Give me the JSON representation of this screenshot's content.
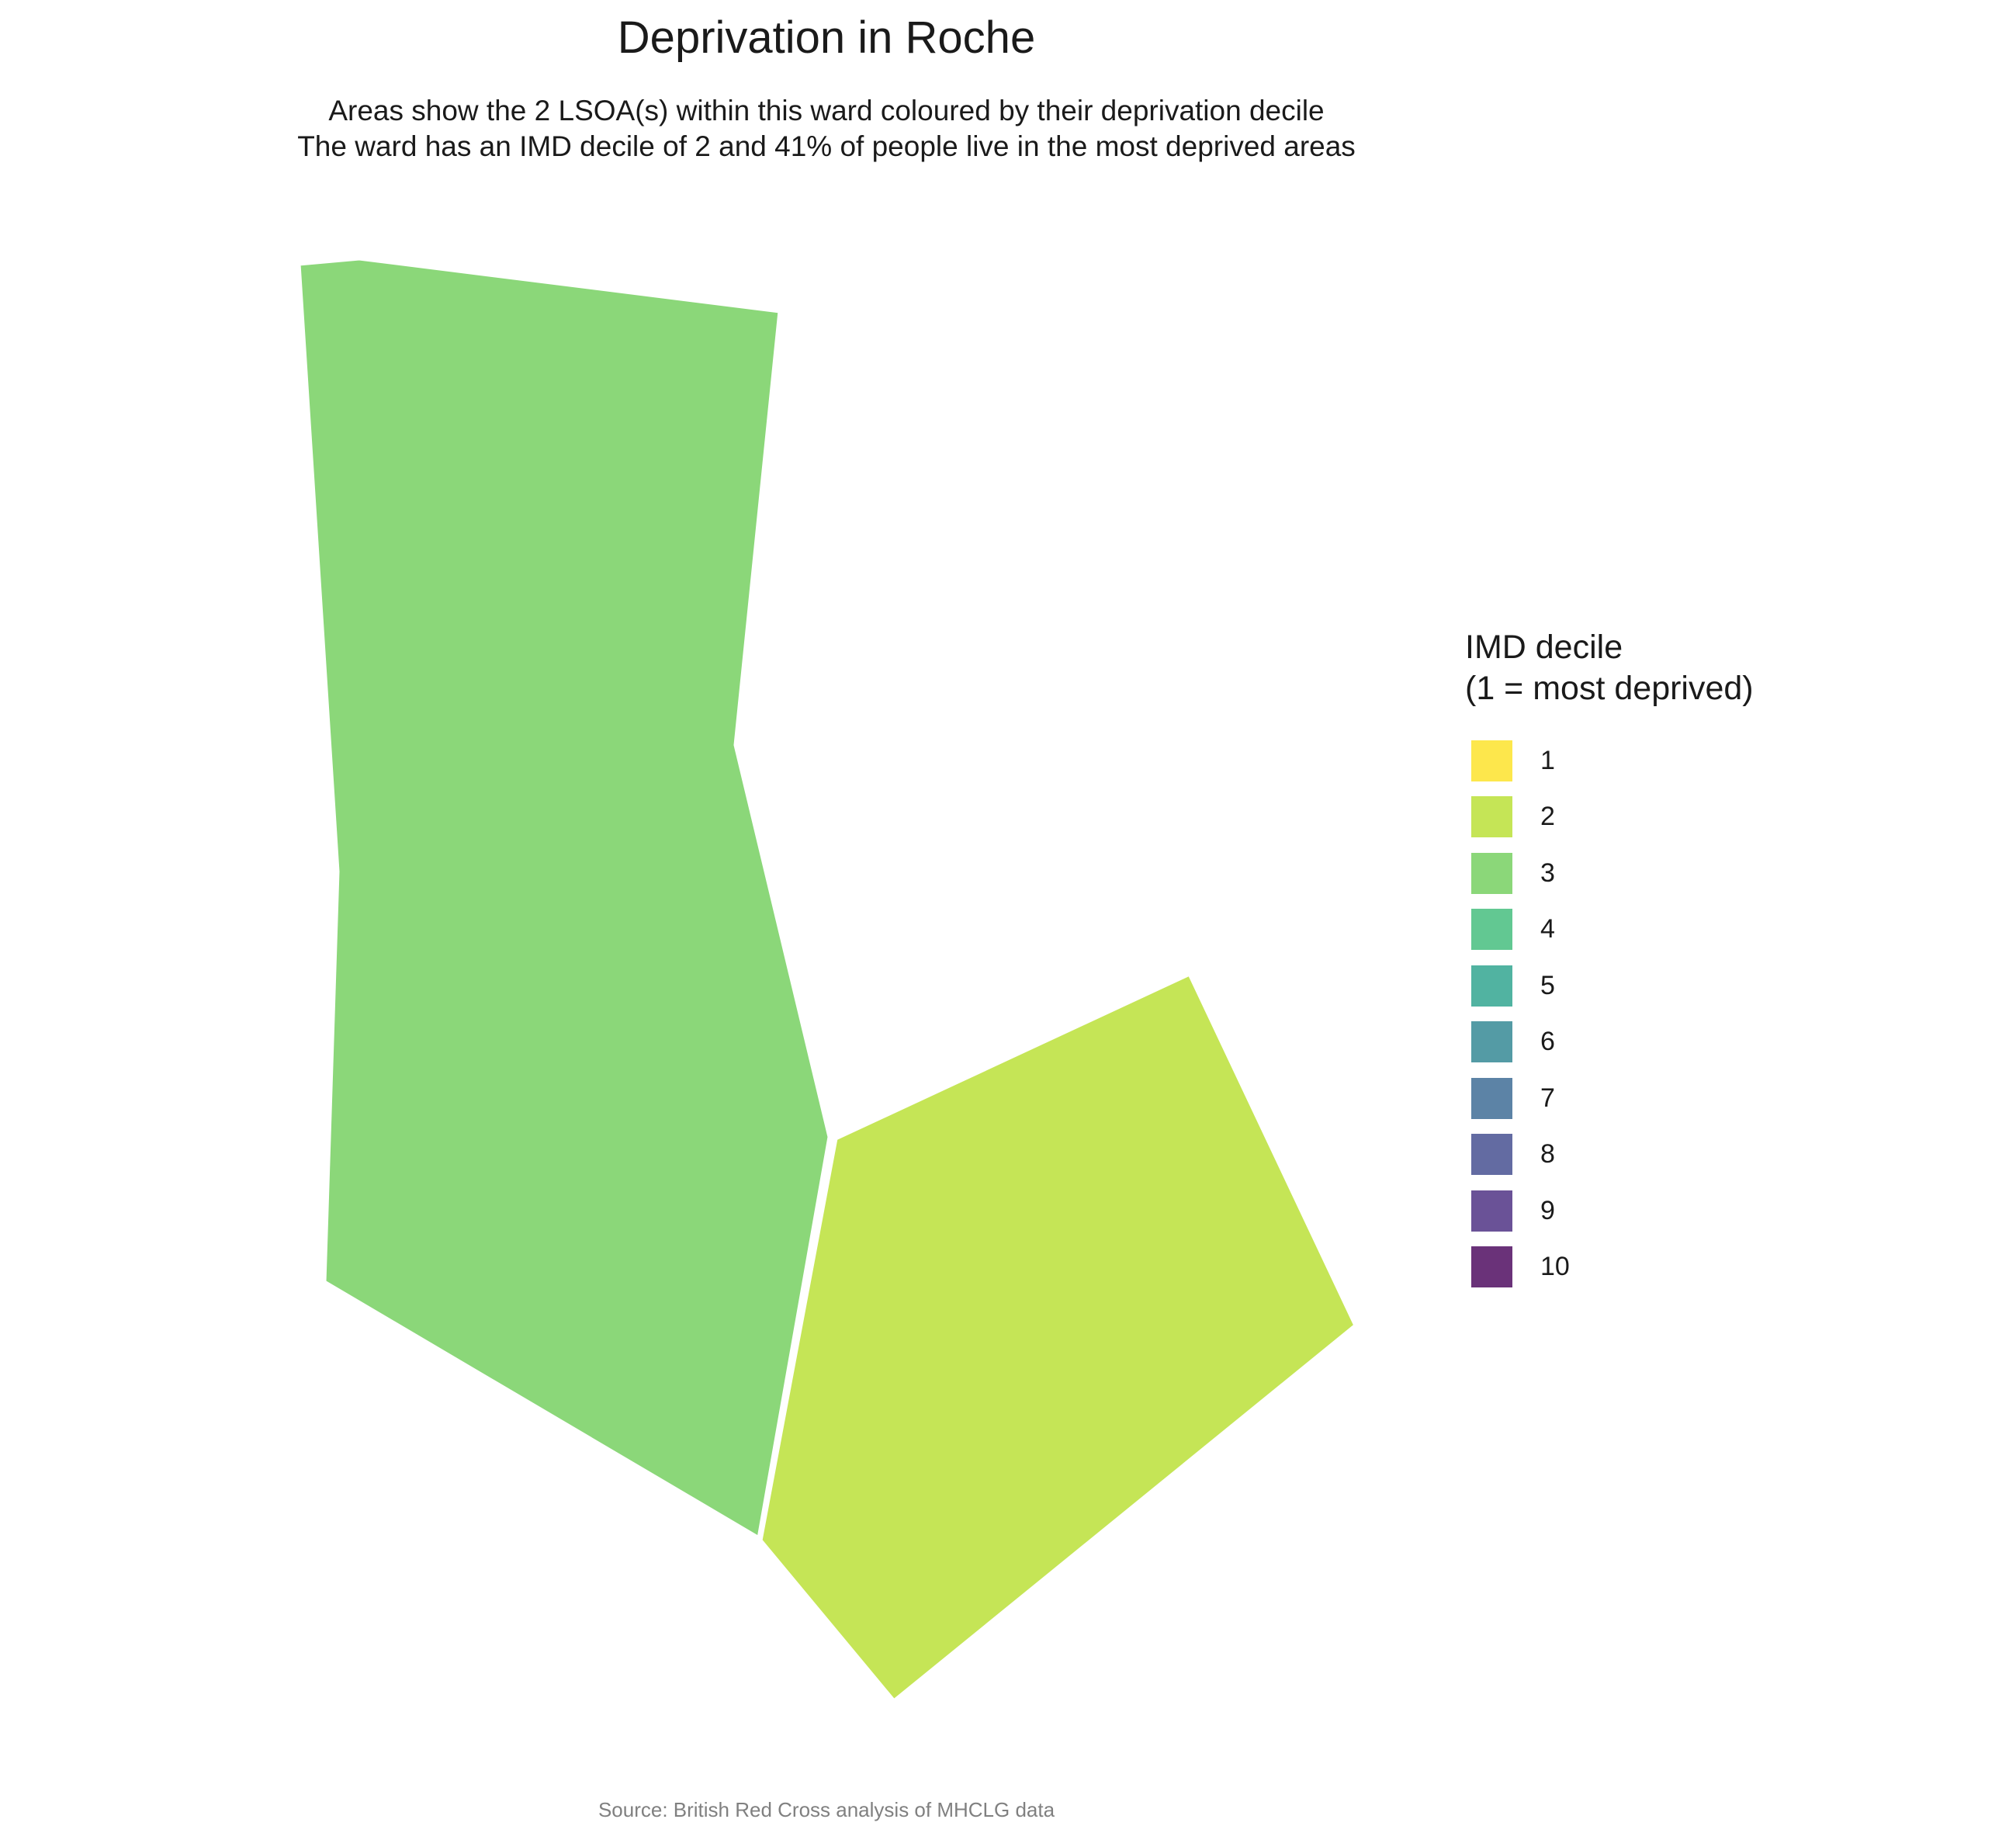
{
  "title": "Deprivation in Roche",
  "subtitle": {
    "line1": "Areas show the 2 LSOA(s) within this ward coloured by their deprivation decile",
    "line2": "The ward has an IMD decile of 2 and 41% of people live in the most deprived areas"
  },
  "legend": {
    "title_line1": "IMD decile",
    "title_line2": "(1 = most deprived)",
    "items": [
      {
        "label": "1",
        "color": "#FDE74C"
      },
      {
        "label": "2",
        "color": "#C5E556"
      },
      {
        "label": "3",
        "color": "#8BD779"
      },
      {
        "label": "4",
        "color": "#62C892"
      },
      {
        "label": "5",
        "color": "#51B3A1"
      },
      {
        "label": "6",
        "color": "#549BA5"
      },
      {
        "label": "7",
        "color": "#5C83A6"
      },
      {
        "label": "8",
        "color": "#636BA2"
      },
      {
        "label": "9",
        "color": "#6A5297"
      },
      {
        "label": "10",
        "color": "#6A3279"
      }
    ]
  },
  "areas": [
    {
      "name": "LSOA with decile 3",
      "decile": 3,
      "color": "#8BD779"
    },
    {
      "name": "LSOA with decile 2",
      "decile": 2,
      "color": "#C5E556"
    }
  ],
  "caption": "Source: British Red Cross analysis of MHCLG data"
}
